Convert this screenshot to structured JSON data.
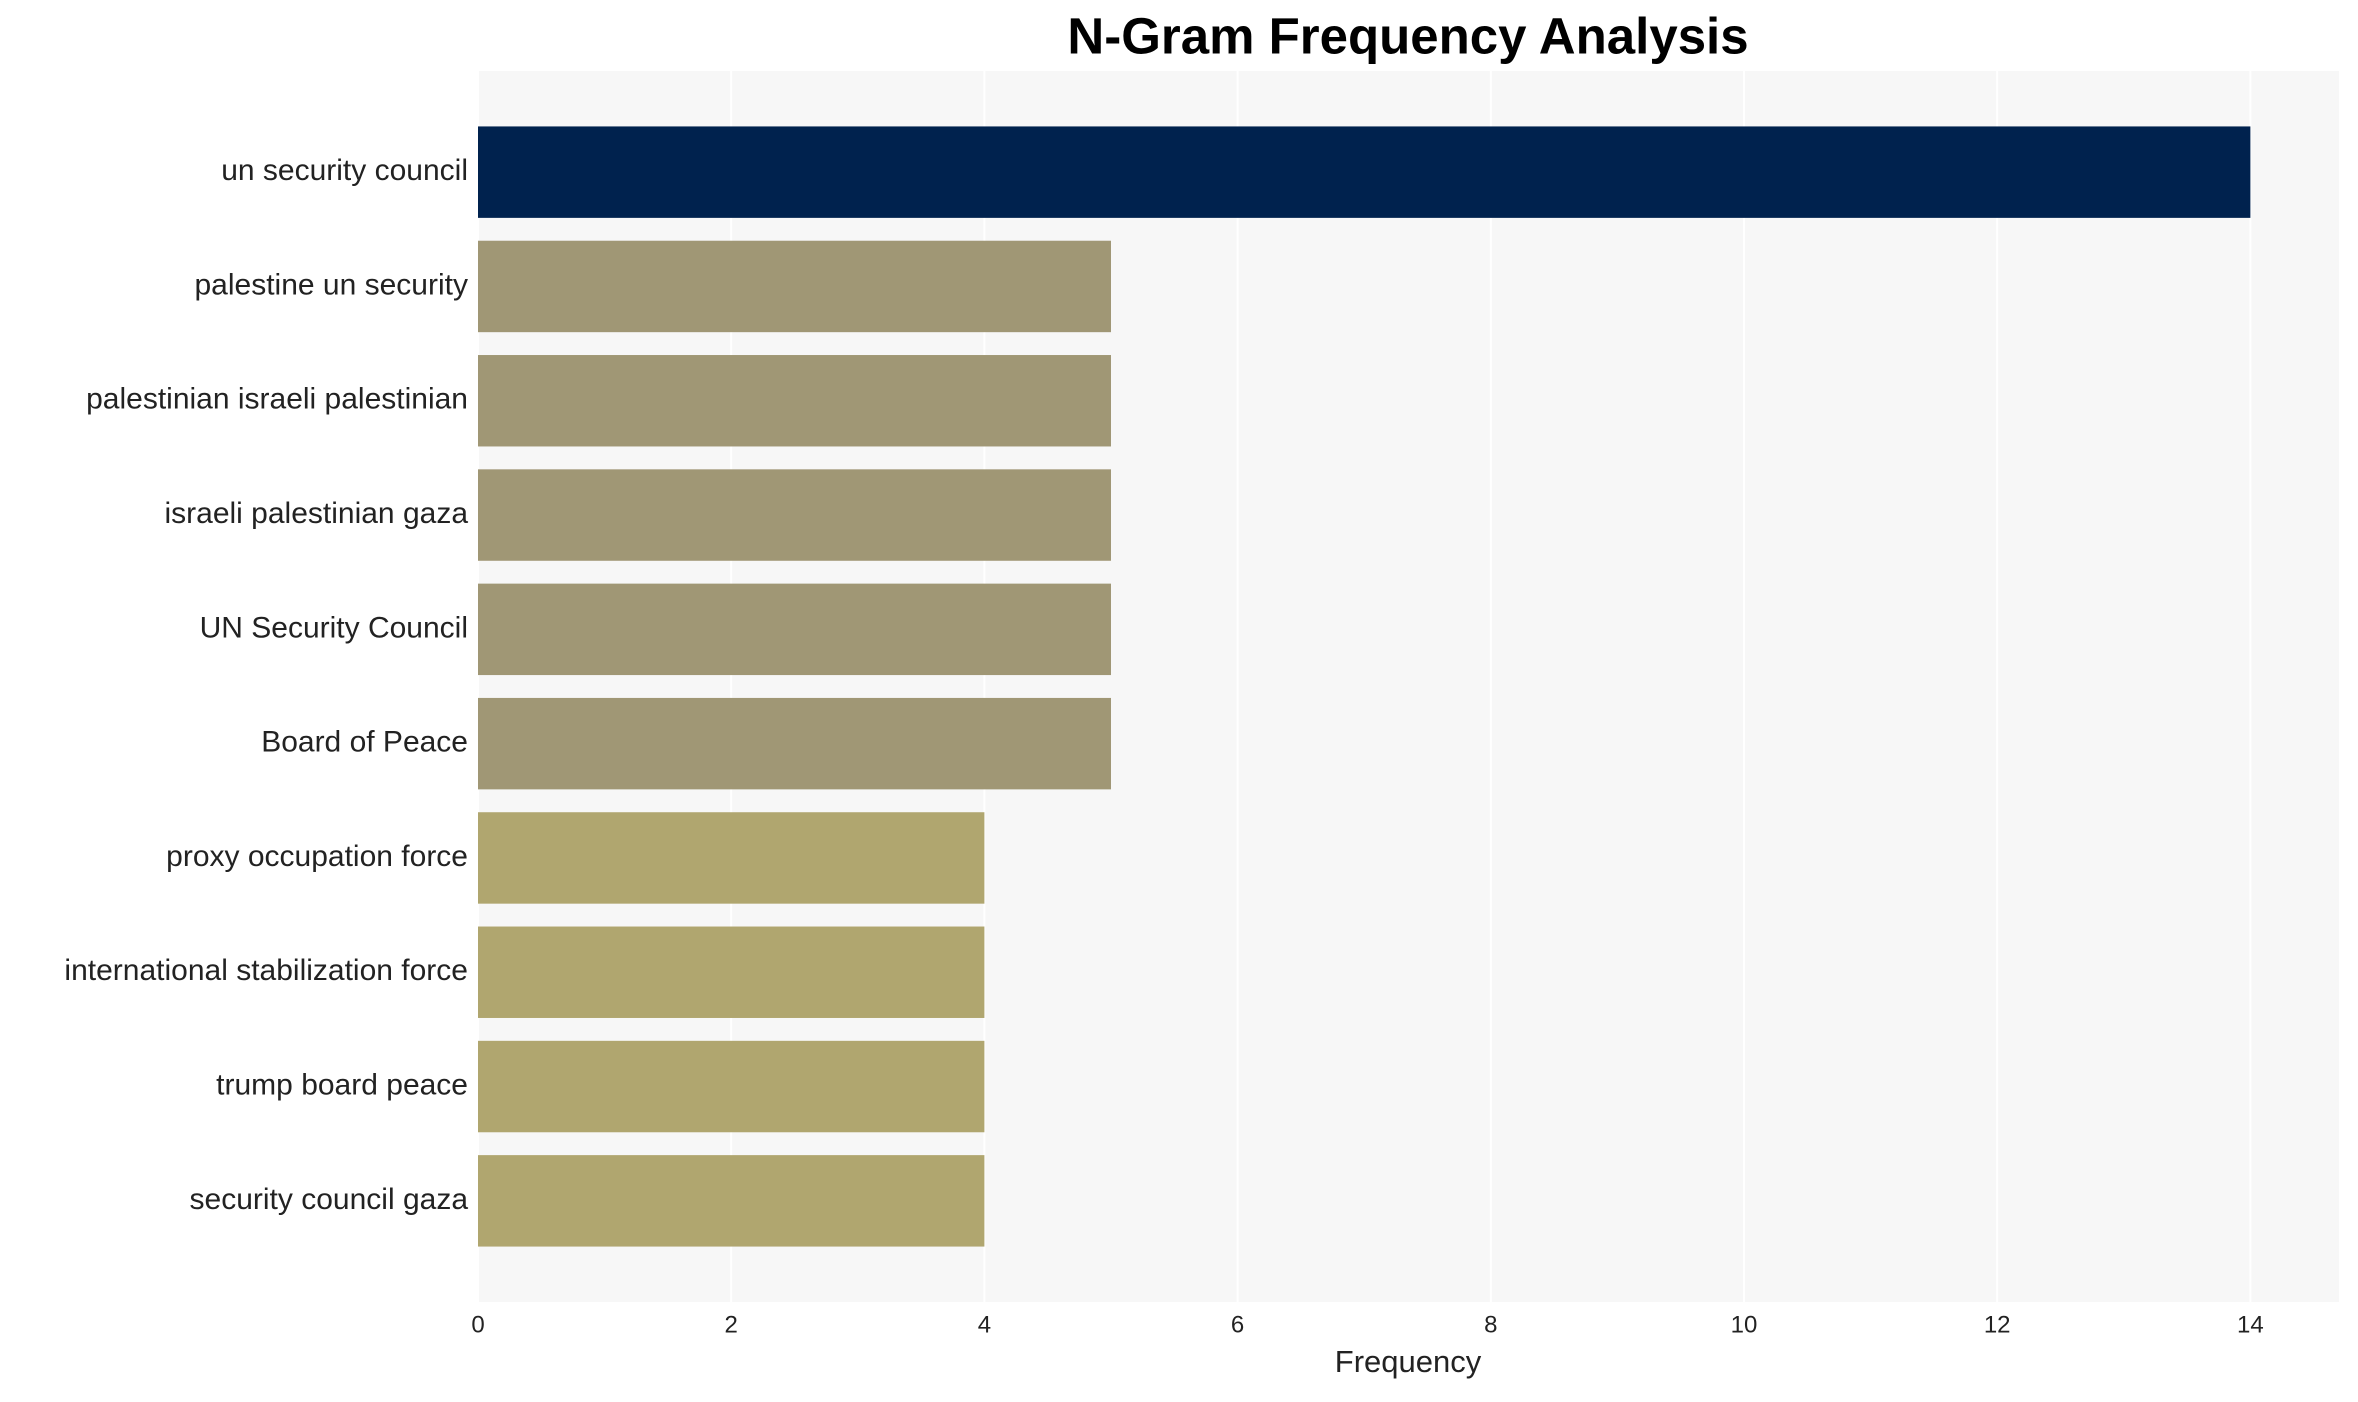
{
  "chart_data": {
    "type": "barh",
    "title": "N-Gram Frequency Analysis",
    "x_label": "Frequency",
    "categories": [
      "un security council",
      "palestine un security",
      "palestinian israeli palestinian",
      "israeli palestinian gaza",
      "UN Security Council",
      "Board of Peace",
      "proxy occupation force",
      "international stabilization force",
      "trump board peace",
      "security council gaza"
    ],
    "values": [
      14,
      5,
      5,
      5,
      5,
      5,
      4,
      4,
      4,
      4
    ],
    "colors": [
      "#00224e",
      "#a09775",
      "#a09775",
      "#a09775",
      "#a09775",
      "#a09775",
      "#b0a66f",
      "#b0a66f",
      "#b0a66f",
      "#b0a66f"
    ],
    "xlim": [
      0,
      14.7
    ],
    "xticks": [
      0,
      2,
      4,
      6,
      8,
      10,
      12,
      14
    ],
    "grid": true
  }
}
